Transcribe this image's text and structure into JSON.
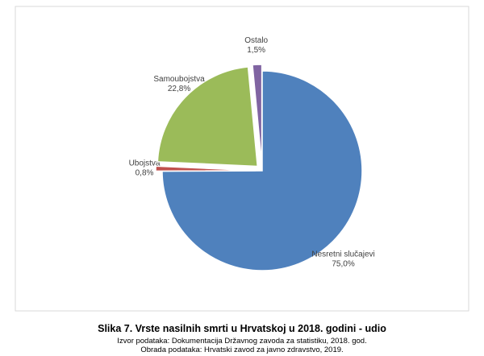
{
  "chart_data": {
    "type": "pie",
    "title": "Slika 7. Vrste nasilnih smrti u Hrvatskoj u 2018. godini - udio",
    "source": "Izvor podataka: Dokumentacija Državnog zavoda za statistiku, 2018. god.",
    "processing": "Obrada podataka: Hrvatski zavod za javno zdravstvo, 2019.",
    "categories": [
      "Nesretni slučajevi",
      "Ubojstva",
      "Samoubojstva",
      "Ostalo"
    ],
    "values": [
      75.0,
      0.8,
      22.8,
      1.5
    ],
    "value_labels": [
      "75,0%",
      "0,8%",
      "22,8%",
      "1,5%"
    ],
    "colors": [
      "#4f81bd",
      "#c0504d",
      "#9bbb59",
      "#8064a2"
    ]
  }
}
